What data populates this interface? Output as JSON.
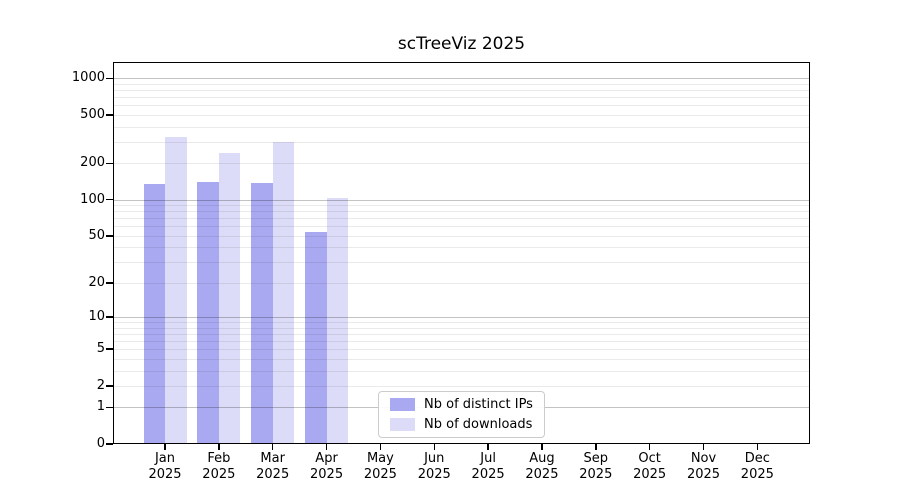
{
  "title": "scTreeViz 2025",
  "legend": {
    "items": [
      {
        "label": "Nb of distinct IPs",
        "color": "#a9a9f1"
      },
      {
        "label": "Nb of downloads",
        "color": "#dcdcf8"
      }
    ],
    "border_color": "#cccccc"
  },
  "chart_data": {
    "type": "bar",
    "title": "scTreeViz 2025",
    "categories": [
      "Jan 2025",
      "Feb 2025",
      "Mar 2025",
      "Apr 2025",
      "May 2025",
      "Jun 2025",
      "Jul 2025",
      "Aug 2025",
      "Sep 2025",
      "Oct 2025",
      "Nov 2025",
      "Dec 2025"
    ],
    "series": [
      {
        "name": "Nb of distinct IPs",
        "color": "#a9a9f1",
        "values": [
          134,
          139,
          138,
          54,
          0,
          0,
          0,
          0,
          0,
          0,
          0,
          0
        ]
      },
      {
        "name": "Nb of downloads",
        "color": "#dcdcf8",
        "values": [
          328,
          245,
          298,
          104,
          0,
          0,
          0,
          0,
          0,
          0,
          0,
          0
        ]
      }
    ],
    "xlabel": "",
    "ylabel": "",
    "yscale": "log1p",
    "y_ticks": [
      0,
      1,
      2,
      5,
      10,
      20,
      50,
      100,
      200,
      500,
      1000
    ],
    "ylim": [
      0,
      1360
    ],
    "grid": true,
    "grid_major_values": [
      1,
      10,
      100,
      1000
    ],
    "grid_major_color": "#c3c3c3",
    "grid_minor_color": "#eaeaea",
    "legend_position": "lower center"
  }
}
